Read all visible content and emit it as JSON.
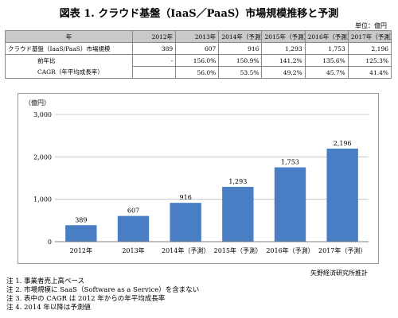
{
  "title": "図表 1. クラウド基盤（IaaS／PaaS）市場規模推移と予測",
  "unit_label": "単位：億円",
  "table": {
    "headers": [
      "年",
      "2012年",
      "2013年",
      "2014年（予測）",
      "2015年（予測）",
      "2016年（予測）",
      "2017年（予測）"
    ],
    "rows": [
      {
        "label": "クラウド基盤（IaaS/PaaS）市場規模",
        "values": [
          "389",
          "607",
          "916",
          "1,293",
          "1,753",
          "2,196"
        ]
      },
      {
        "label": "前年比",
        "values": [
          "-",
          "156.0%",
          "150.9%",
          "141.2%",
          "135.6%",
          "125.3%"
        ]
      },
      {
        "label": "CAGR（年平均成長率）",
        "values": [
          "",
          "56.0%",
          "53.5%",
          "49.2%",
          "45.7%",
          "41.4%"
        ]
      }
    ]
  },
  "chart_data": {
    "type": "bar",
    "ylabel": "（億円）",
    "categories": [
      "2012年",
      "2013年",
      "2014年（予測）",
      "2015年（予測）",
      "2016年（予測）",
      "2017年（予測）"
    ],
    "values": [
      389,
      607,
      916,
      1293,
      1753,
      2196
    ],
    "value_labels": [
      "389",
      "607",
      "916",
      "1,293",
      "1,753",
      "2,196"
    ],
    "ylim": [
      0,
      3000
    ],
    "yticks": [
      0,
      1000,
      2000,
      3000
    ],
    "ytick_labels": [
      "0",
      "1,000",
      "2,000",
      "3,000"
    ],
    "grid": true,
    "bar_color": "#4a7ec4"
  },
  "source": "矢野経済研究所推計",
  "notes": [
    "注 1.  事業者売上高ベース",
    "注 2.  市場規模に SaaS（Software as a Service）を含まない",
    "注 3.  表中の CAGR は 2012 年からの年平均成長率",
    "注 4.    2014 年以降は予測値"
  ]
}
